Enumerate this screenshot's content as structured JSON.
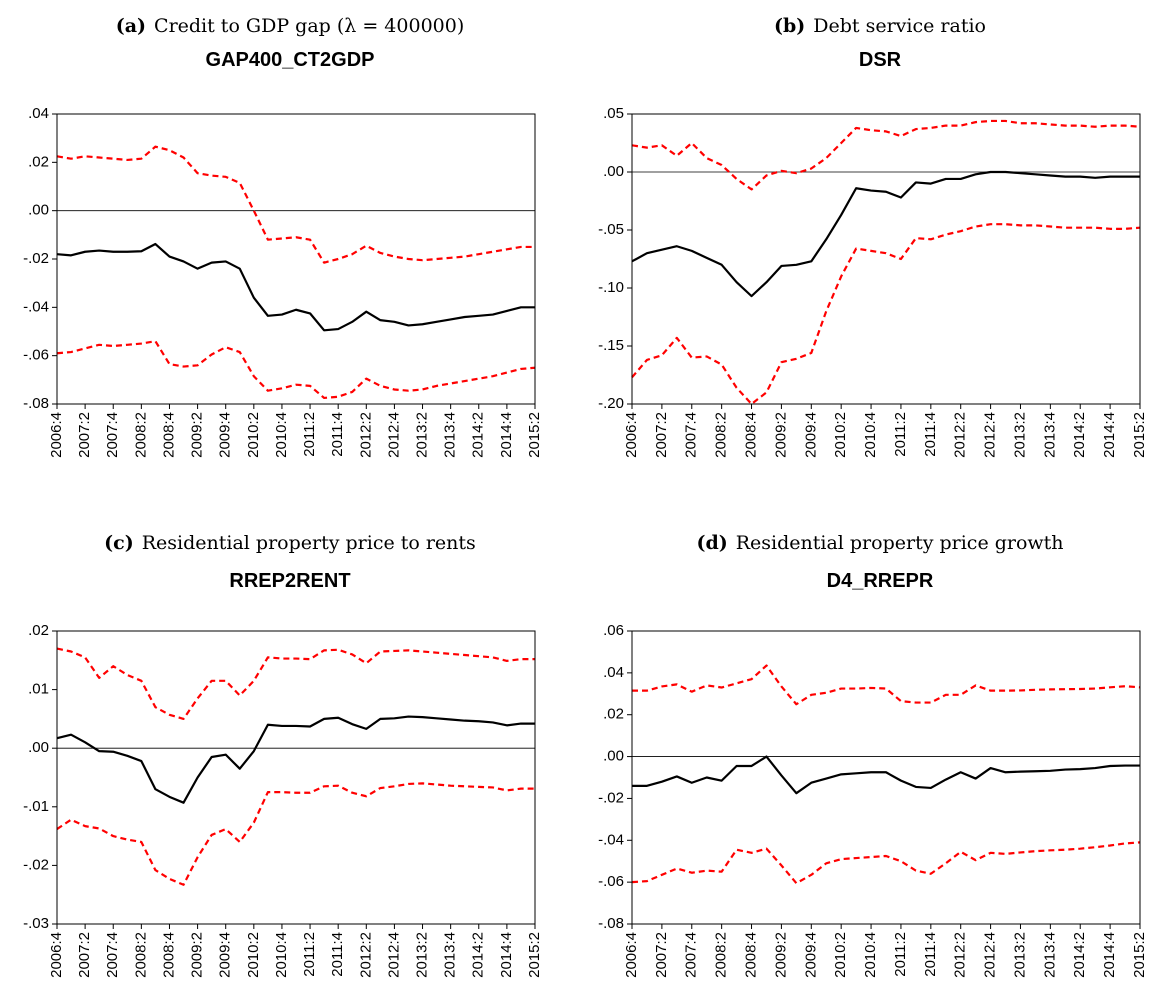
{
  "chart_data": [
    {
      "type": "line",
      "panel": "(a)",
      "caption": "Credit to GDP gap (λ = 400000)",
      "title": "GAP400_CT2GDP",
      "categories": [
        "2006:4",
        null,
        "2007:2",
        null,
        "2007:4",
        null,
        "2008:2",
        null,
        "2008:4",
        null,
        "2009:2",
        null,
        "2009:4",
        null,
        "2010:2",
        null,
        "2010:4",
        null,
        "2011:2",
        null,
        "2011:4",
        null,
        "2012:2",
        null,
        "2012:4",
        null,
        "2013:2",
        null,
        "2013:4",
        null,
        "2014:2",
        null,
        "2014:4",
        null,
        "2015:2"
      ],
      "series": [
        {
          "color": "#000000",
          "dashed": false,
          "values": [
            -0.018,
            -0.0185,
            -0.017,
            -0.0165,
            -0.017,
            -0.017,
            -0.0168,
            -0.0138,
            -0.019,
            -0.021,
            -0.024,
            -0.0215,
            -0.021,
            -0.024,
            -0.036,
            -0.0435,
            -0.043,
            -0.041,
            -0.0425,
            -0.0495,
            -0.049,
            -0.046,
            -0.0418,
            -0.0453,
            -0.046,
            -0.0475,
            -0.047,
            -0.046,
            -0.045,
            -0.044,
            -0.0435,
            -0.043,
            -0.0415,
            -0.04,
            -0.04
          ]
        },
        {
          "color": "#ff0000",
          "dashed": true,
          "values": [
            0.0225,
            0.0215,
            0.0225,
            0.022,
            0.0215,
            0.021,
            0.0215,
            0.0265,
            0.025,
            0.022,
            0.0155,
            0.0145,
            0.014,
            0.0115,
            0.0,
            -0.012,
            -0.0115,
            -0.011,
            -0.012,
            -0.0215,
            -0.02,
            -0.018,
            -0.0145,
            -0.0175,
            -0.019,
            -0.02,
            -0.0205,
            -0.02,
            -0.0195,
            -0.019,
            -0.018,
            -0.017,
            -0.016,
            -0.015,
            -0.015
          ]
        },
        {
          "color": "#ff0000",
          "dashed": true,
          "values": [
            -0.059,
            -0.0585,
            -0.057,
            -0.0555,
            -0.056,
            -0.0555,
            -0.055,
            -0.054,
            -0.0635,
            -0.0645,
            -0.064,
            -0.0595,
            -0.0565,
            -0.0585,
            -0.0685,
            -0.0745,
            -0.0735,
            -0.072,
            -0.0725,
            -0.0775,
            -0.077,
            -0.075,
            -0.0695,
            -0.0725,
            -0.074,
            -0.0745,
            -0.074,
            -0.0725,
            -0.0715,
            -0.0705,
            -0.0695,
            -0.0685,
            -0.067,
            -0.0655,
            -0.065
          ]
        }
      ],
      "ylim": [
        -0.08,
        0.04
      ],
      "yticks": [
        {
          "value": -0.08,
          "label": "-.08"
        },
        {
          "value": -0.06,
          "label": "-.06"
        },
        {
          "value": -0.04,
          "label": "-.04"
        },
        {
          "value": -0.02,
          "label": "-.02"
        },
        {
          "value": 0,
          "label": ".00"
        },
        {
          "value": 0.02,
          "label": ".02"
        },
        {
          "value": 0.04,
          "label": ".04"
        }
      ],
      "zero_line": true
    },
    {
      "type": "line",
      "panel": "(b)",
      "caption": "Debt service ratio",
      "title": "DSR",
      "categories": [
        "2006:4",
        null,
        "2007:2",
        null,
        "2007:4",
        null,
        "2008:2",
        null,
        "2008:4",
        null,
        "2009:2",
        null,
        "2009:4",
        null,
        "2010:2",
        null,
        "2010:4",
        null,
        "2011:2",
        null,
        "2011:4",
        null,
        "2012:2",
        null,
        "2012:4",
        null,
        "2013:2",
        null,
        "2013:4",
        null,
        "2014:2",
        null,
        "2014:4",
        null,
        "2015:2"
      ],
      "series": [
        {
          "color": "#000000",
          "dashed": false,
          "values": [
            -0.077,
            -0.07,
            -0.067,
            -0.064,
            -0.068,
            -0.074,
            -0.08,
            -0.095,
            -0.107,
            -0.095,
            -0.081,
            -0.08,
            -0.077,
            -0.058,
            -0.037,
            -0.014,
            -0.016,
            -0.017,
            -0.022,
            -0.009,
            -0.01,
            -0.006,
            -0.006,
            -0.002,
            0,
            0,
            -0.001,
            -0.002,
            -0.003,
            -0.004,
            -0.004,
            -0.005,
            -0.004,
            -0.004,
            -0.004
          ]
        },
        {
          "color": "#ff0000",
          "dashed": true,
          "values": [
            0.023,
            0.021,
            0.023,
            0.014,
            0.025,
            0.012,
            0.006,
            -0.006,
            -0.015,
            -0.003,
            0.001,
            -0.001,
            0.003,
            0.012,
            0.025,
            0.038,
            0.036,
            0.035,
            0.031,
            0.037,
            0.038,
            0.04,
            0.04,
            0.043,
            0.044,
            0.044,
            0.042,
            0.042,
            0.041,
            0.04,
            0.04,
            0.039,
            0.04,
            0.04,
            0.039
          ]
        },
        {
          "color": "#ff0000",
          "dashed": true,
          "values": [
            -0.177,
            -0.162,
            -0.158,
            -0.143,
            -0.16,
            -0.159,
            -0.166,
            -0.186,
            -0.2,
            -0.19,
            -0.164,
            -0.161,
            -0.156,
            -0.12,
            -0.09,
            -0.066,
            -0.068,
            -0.07,
            -0.075,
            -0.057,
            -0.058,
            -0.054,
            -0.051,
            -0.047,
            -0.045,
            -0.045,
            -0.046,
            -0.046,
            -0.047,
            -0.048,
            -0.048,
            -0.048,
            -0.049,
            -0.049,
            -0.048
          ]
        }
      ],
      "ylim": [
        -0.2,
        0.05
      ],
      "yticks": [
        {
          "value": -0.2,
          "label": "-.20"
        },
        {
          "value": -0.15,
          "label": "-.15"
        },
        {
          "value": -0.1,
          "label": "-.10"
        },
        {
          "value": -0.05,
          "label": "-.05"
        },
        {
          "value": 0,
          "label": ".00"
        },
        {
          "value": 0.05,
          "label": ".05"
        }
      ],
      "zero_line": true
    },
    {
      "type": "line",
      "panel": "(c)",
      "caption": "Residential property price to rents",
      "title": "RREP2RENT",
      "categories": [
        "2006:4",
        null,
        "2007:2",
        null,
        "2007:4",
        null,
        "2008:2",
        null,
        "2008:4",
        null,
        "2009:2",
        null,
        "2009:4",
        null,
        "2010:2",
        null,
        "2010:4",
        null,
        "2011:2",
        null,
        "2011:4",
        null,
        "2012:2",
        null,
        "2012:4",
        null,
        "2013:2",
        null,
        "2013:4",
        null,
        "2014:2",
        null,
        "2014:4",
        null,
        "2015:2"
      ],
      "series": [
        {
          "color": "#000000",
          "dashed": false,
          "values": [
            0.0017,
            0.0023,
            0.001,
            -0.0005,
            -0.0006,
            -0.0013,
            -0.0022,
            -0.007,
            -0.0083,
            -0.0093,
            -0.005,
            -0.0015,
            -0.0011,
            -0.0035,
            -0.0005,
            0.004,
            0.0038,
            0.0038,
            0.0037,
            0.005,
            0.0052,
            0.0041,
            0.0033,
            0.005,
            0.0051,
            0.0054,
            0.0053,
            0.0051,
            0.0049,
            0.0047,
            0.0046,
            0.0044,
            0.0039,
            0.0042,
            0.0042
          ]
        },
        {
          "color": "#ff0000",
          "dashed": true,
          "values": [
            0.017,
            0.0165,
            0.0155,
            0.012,
            0.014,
            0.0125,
            0.0115,
            0.007,
            0.0057,
            0.005,
            0.0085,
            0.0115,
            0.0115,
            0.009,
            0.0115,
            0.0155,
            0.0153,
            0.0153,
            0.0152,
            0.0167,
            0.0168,
            0.016,
            0.0145,
            0.0165,
            0.0166,
            0.0167,
            0.0165,
            0.0163,
            0.0161,
            0.0159,
            0.0157,
            0.0155,
            0.0149,
            0.0152,
            0.0152
          ]
        },
        {
          "color": "#ff0000",
          "dashed": true,
          "values": [
            -0.0138,
            -0.0122,
            -0.0133,
            -0.0137,
            -0.015,
            -0.0156,
            -0.016,
            -0.0208,
            -0.0223,
            -0.0233,
            -0.0186,
            -0.0148,
            -0.0138,
            -0.016,
            -0.0127,
            -0.0075,
            -0.0075,
            -0.0076,
            -0.0076,
            -0.0065,
            -0.0064,
            -0.0076,
            -0.0082,
            -0.0068,
            -0.0065,
            -0.0061,
            -0.006,
            -0.0062,
            -0.0064,
            -0.0065,
            -0.0066,
            -0.0067,
            -0.0072,
            -0.0069,
            -0.0069
          ]
        }
      ],
      "ylim": [
        -0.03,
        0.02
      ],
      "yticks": [
        {
          "value": -0.03,
          "label": "-.03"
        },
        {
          "value": -0.02,
          "label": "-.02"
        },
        {
          "value": -0.01,
          "label": "-.01"
        },
        {
          "value": 0,
          "label": ".00"
        },
        {
          "value": 0.01,
          "label": ".01"
        },
        {
          "value": 0.02,
          "label": ".02"
        }
      ],
      "zero_line": true
    },
    {
      "type": "line",
      "panel": "(d)",
      "caption": "Residential property price growth",
      "title": "D4_RREPR",
      "categories": [
        "2006:4",
        null,
        "2007:2",
        null,
        "2007:4",
        null,
        "2008:2",
        null,
        "2008:4",
        null,
        "2009:2",
        null,
        "2009:4",
        null,
        "2010:2",
        null,
        "2010:4",
        null,
        "2011:2",
        null,
        "2011:4",
        null,
        "2012:2",
        null,
        "2012:4",
        null,
        "2013:2",
        null,
        "2013:4",
        null,
        "2014:2",
        null,
        "2014:4",
        null,
        "2015:2"
      ],
      "series": [
        {
          "color": "#000000",
          "dashed": false,
          "values": [
            -0.014,
            -0.014,
            -0.012,
            -0.0095,
            -0.0125,
            -0.01,
            -0.0115,
            -0.0045,
            -0.0045,
            0.0,
            -0.009,
            -0.0175,
            -0.0125,
            -0.0105,
            -0.0085,
            -0.008,
            -0.0075,
            -0.0075,
            -0.0115,
            -0.0145,
            -0.015,
            -0.011,
            -0.0075,
            -0.0105,
            -0.0055,
            -0.0075,
            -0.0072,
            -0.007,
            -0.0068,
            -0.0062,
            -0.006,
            -0.0055,
            -0.0045,
            -0.0043,
            -0.0043
          ]
        },
        {
          "color": "#ff0000",
          "dashed": true,
          "values": [
            0.0315,
            0.0315,
            0.0335,
            0.0345,
            0.031,
            0.034,
            0.033,
            0.035,
            0.037,
            0.0435,
            0.0335,
            0.025,
            0.0295,
            0.0305,
            0.0325,
            0.0325,
            0.0328,
            0.0325,
            0.0265,
            0.0258,
            0.0258,
            0.0295,
            0.0295,
            0.034,
            0.0315,
            0.0315,
            0.0316,
            0.0319,
            0.0321,
            0.0322,
            0.0323,
            0.0325,
            0.0331,
            0.0336,
            0.0331
          ]
        },
        {
          "color": "#ff0000",
          "dashed": true,
          "values": [
            -0.06,
            -0.0595,
            -0.0565,
            -0.0535,
            -0.0555,
            -0.0545,
            -0.055,
            -0.0445,
            -0.046,
            -0.044,
            -0.052,
            -0.0605,
            -0.0565,
            -0.051,
            -0.049,
            -0.0485,
            -0.048,
            -0.0475,
            -0.05,
            -0.0545,
            -0.056,
            -0.051,
            -0.0455,
            -0.0495,
            -0.046,
            -0.0465,
            -0.0458,
            -0.0452,
            -0.0448,
            -0.0445,
            -0.044,
            -0.0433,
            -0.0425,
            -0.0415,
            -0.041
          ]
        }
      ],
      "ylim": [
        -0.08,
        0.06
      ],
      "yticks": [
        {
          "value": -0.08,
          "label": "-.08"
        },
        {
          "value": -0.06,
          "label": "-.06"
        },
        {
          "value": -0.04,
          "label": "-.04"
        },
        {
          "value": -0.02,
          "label": "-.02"
        },
        {
          "value": 0,
          "label": ".00"
        },
        {
          "value": 0.02,
          "label": ".02"
        },
        {
          "value": 0.04,
          "label": ".04"
        },
        {
          "value": 0.06,
          "label": ".06"
        }
      ],
      "zero_line": true
    }
  ]
}
